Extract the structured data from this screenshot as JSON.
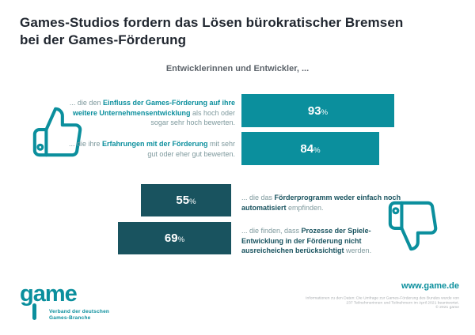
{
  "header": {
    "title": "Games-Studios fordern das Lösen bürokratischer Bremsen bei der Games-Förderung",
    "subtitle": "Entwicklerinnen und Entwickler, ..."
  },
  "colors": {
    "teal": "#0b8f9d",
    "dark_teal": "#19535f",
    "title_text": "#212730",
    "muted_label_text": "#7e999d",
    "fine_print": "#a9adb0",
    "background": "#ffffff"
  },
  "chart_data": {
    "type": "bar",
    "unit": "%",
    "title": "Games-Studios fordern das Lösen bürokratischer Bremsen bei der Games-Förderung",
    "subtitle": "Entwicklerinnen und Entwickler, ...",
    "orientation": "horizontal",
    "xlim": [
      0,
      100
    ],
    "groups": [
      {
        "sentiment": "positive",
        "icon": "thumbs-up",
        "bar_color": "#0b8f9d",
        "bars_aligned": "left-edge, labels right-aligned to the left of bars",
        "items": [
          {
            "value": 93,
            "label_prefix": "... die den ",
            "label_bold": "Einfluss der Games-Förderung auf ihre weitere Unternehmensentwicklung",
            "label_suffix": " als hoch oder sogar sehr hoch bewerten."
          },
          {
            "value": 84,
            "label_prefix": "... die ihre ",
            "label_bold": "Erfahrungen mit der Förderung",
            "label_suffix": " mit sehr gut oder eher gut bewerten."
          }
        ]
      },
      {
        "sentiment": "negative",
        "icon": "thumbs-down",
        "bar_color": "#19535f",
        "bars_aligned": "right-edge, labels left-aligned to the right of bars",
        "items": [
          {
            "value": 55,
            "label_prefix": "... die das ",
            "label_bold": "Förderprogramm weder einfach noch automatisiert",
            "label_suffix": " empfinden."
          },
          {
            "value": 69,
            "label_prefix": "... die finden, dass ",
            "label_bold": "Prozesse der Spiele-Entwicklung in der Förderung nicht ausreicheichen berücksichtigt",
            "label_suffix": " werden."
          }
        ]
      }
    ]
  },
  "footer": {
    "logo": {
      "word": "game",
      "tagline_line1": "Verband der deutschen",
      "tagline_line2": "Games-Branche"
    },
    "website": "www.game.de",
    "fine_print_line1": "Informationen zu den Daten: Die Umfrage zur Games-Förderung des Bundes wurde von",
    "fine_print_line2": "237 Teilnehmerinnen und Teilnehmern im April 2021 beantwortet.",
    "fine_print_line3": "© 2021 game"
  }
}
